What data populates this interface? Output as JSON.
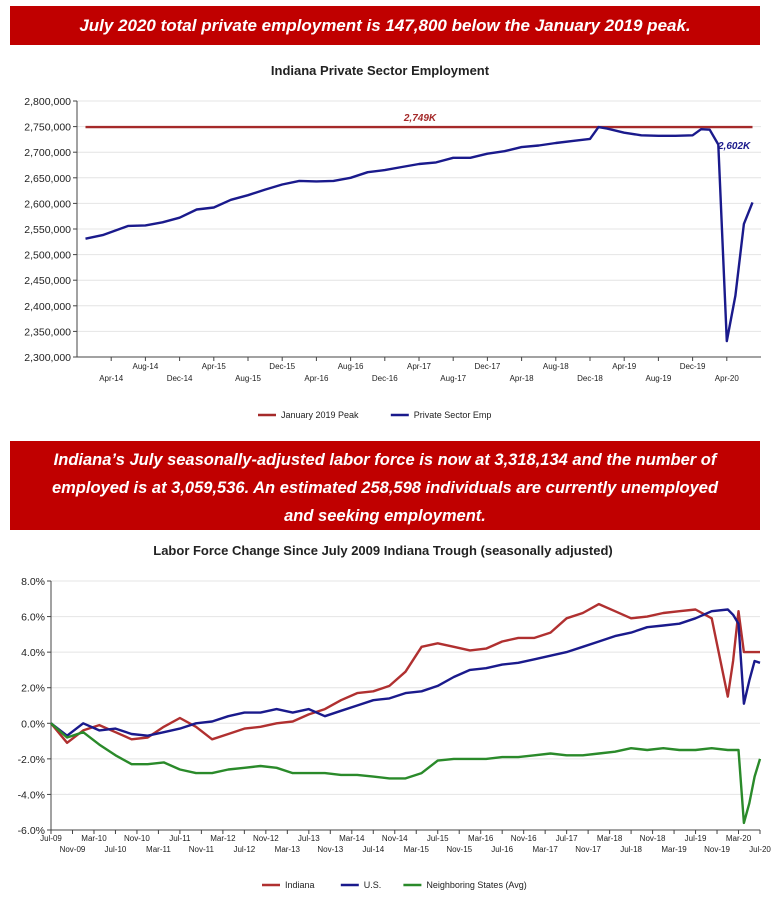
{
  "banner_top": "July 2020 total private employment is 147,800 below the January 2019 peak.",
  "banner_mid": [
    "Indiana’s July seasonally-adjusted labor force is now at 3,318,134 and the number of",
    "employed is at 3,059,536. An estimated 258,598 individuals are currently unemployed",
    "and seeking employment."
  ],
  "colors": {
    "banner": "#c00000",
    "peak": "#a52a2a",
    "private": "#1a1a8c",
    "indiana": "#b03030",
    "us": "#1a1a8c",
    "neighbors": "#2a8a2a"
  },
  "chart_data": [
    {
      "type": "line",
      "title": "Indiana Private Sector Employment",
      "y_ticks": [
        "2,800,000",
        "2,750,000",
        "2,700,000",
        "2,650,000",
        "2,600,000",
        "2,550,000",
        "2,500,000",
        "2,450,000",
        "2,400,000",
        "2,350,000",
        "2,300,000"
      ],
      "ylim": [
        2300000,
        2800000
      ],
      "x_ticks": [
        "Apr-14",
        "Aug-14",
        "Dec-14",
        "Apr-15",
        "Aug-15",
        "Dec-15",
        "Apr-16",
        "Aug-16",
        "Dec-16",
        "Apr-17",
        "Aug-17",
        "Dec-17",
        "Apr-18",
        "Aug-18",
        "Dec-18",
        "Apr-19",
        "Aug-19",
        "Dec-19",
        "Apr-20"
      ],
      "annotations": [
        "2,749K",
        "2,602K"
      ],
      "legend": [
        "January 2019 Peak",
        "Private Sector Emp"
      ],
      "legend_position": "bottom",
      "series": [
        {
          "name": "January 2019 Peak",
          "color": "#a52a2a",
          "x": [
            "2014-01",
            "2020-07"
          ],
          "values": [
            2749000,
            2749000
          ]
        },
        {
          "name": "Private Sector Emp",
          "color": "#1a1a8c",
          "x": [
            "2014-01",
            "2014-03",
            "2014-06",
            "2014-08",
            "2014-10",
            "2014-12",
            "2015-02",
            "2015-04",
            "2015-06",
            "2015-08",
            "2015-10",
            "2015-12",
            "2016-02",
            "2016-04",
            "2016-06",
            "2016-08",
            "2016-10",
            "2016-12",
            "2017-02",
            "2017-04",
            "2017-06",
            "2017-08",
            "2017-10",
            "2017-12",
            "2018-02",
            "2018-04",
            "2018-06",
            "2018-08",
            "2018-10",
            "2018-12",
            "2019-01",
            "2019-02",
            "2019-04",
            "2019-06",
            "2019-08",
            "2019-10",
            "2019-12",
            "2020-01",
            "2020-02",
            "2020-03",
            "2020-04",
            "2020-05",
            "2020-06",
            "2020-07"
          ],
          "values": [
            2531000,
            2538000,
            2556000,
            2557000,
            2563000,
            2572000,
            2588000,
            2592000,
            2607000,
            2616000,
            2627000,
            2637000,
            2644000,
            2643000,
            2644000,
            2650000,
            2661000,
            2665000,
            2671000,
            2677000,
            2680000,
            2689000,
            2689000,
            2697000,
            2702000,
            2710000,
            2713000,
            2718000,
            2722000,
            2726000,
            2749000,
            2746000,
            2738000,
            2733000,
            2732000,
            2732000,
            2733000,
            2745000,
            2744000,
            2715000,
            2331000,
            2420000,
            2560000,
            2602000
          ]
        }
      ]
    },
    {
      "type": "line",
      "title": "Labor Force Change Since July 2009 Indiana Trough (seasonally adjusted)",
      "y_ticks": [
        "8.0%",
        "6.0%",
        "4.0%",
        "2.0%",
        "0.0%",
        "-2.0%",
        "-4.0%",
        "-6.0%"
      ],
      "ylim": [
        -6,
        8
      ],
      "x_ticks": [
        "Jul-09",
        "Nov-09",
        "Mar-10",
        "Jul-10",
        "Nov-10",
        "Mar-11",
        "Jul-11",
        "Nov-11",
        "Mar-12",
        "Jul-12",
        "Nov-12",
        "Mar-13",
        "Jul-13",
        "Nov-13",
        "Mar-14",
        "Jul-14",
        "Nov-14",
        "Mar-15",
        "Jul-15",
        "Nov-15",
        "Mar-16",
        "Jul-16",
        "Nov-16",
        "Mar-17",
        "Jul-17",
        "Nov-17",
        "Mar-18",
        "Jul-18",
        "Nov-18",
        "Mar-19",
        "Jul-19",
        "Nov-19",
        "Mar-20",
        "Jul-20"
      ],
      "legend": [
        "Indiana",
        "U.S.",
        "Neighboring States (Avg)"
      ],
      "legend_position": "bottom",
      "series": [
        {
          "name": "Indiana",
          "color": "#b03030",
          "x": [
            "2009-07",
            "2009-10",
            "2010-01",
            "2010-04",
            "2010-07",
            "2010-10",
            "2011-01",
            "2011-04",
            "2011-07",
            "2011-10",
            "2012-01",
            "2012-04",
            "2012-07",
            "2012-10",
            "2013-01",
            "2013-04",
            "2013-07",
            "2013-10",
            "2014-01",
            "2014-04",
            "2014-07",
            "2014-10",
            "2015-01",
            "2015-04",
            "2015-07",
            "2015-10",
            "2016-01",
            "2016-04",
            "2016-07",
            "2016-10",
            "2017-01",
            "2017-04",
            "2017-07",
            "2017-10",
            "2018-01",
            "2018-04",
            "2018-07",
            "2018-10",
            "2019-01",
            "2019-04",
            "2019-07",
            "2019-10",
            "2020-01",
            "2020-02",
            "2020-03",
            "2020-04",
            "2020-05",
            "2020-06",
            "2020-07"
          ],
          "values": [
            0.0,
            -1.1,
            -0.4,
            -0.1,
            -0.5,
            -0.9,
            -0.8,
            -0.2,
            0.3,
            -0.2,
            -0.9,
            -0.6,
            -0.3,
            -0.2,
            0.0,
            0.1,
            0.5,
            0.8,
            1.3,
            1.7,
            1.8,
            2.1,
            2.9,
            4.3,
            4.5,
            4.3,
            4.1,
            4.2,
            4.6,
            4.8,
            4.8,
            5.1,
            5.9,
            6.2,
            6.7,
            6.3,
            5.9,
            6.0,
            6.2,
            6.3,
            6.4,
            5.9,
            1.5,
            3.5,
            6.3,
            4.0,
            4.0,
            4.0,
            4.0
          ]
        },
        {
          "name": "U.S.",
          "color": "#1a1a8c",
          "x": [
            "2009-07",
            "2009-10",
            "2010-01",
            "2010-04",
            "2010-07",
            "2010-10",
            "2011-01",
            "2011-04",
            "2011-07",
            "2011-10",
            "2012-01",
            "2012-04",
            "2012-07",
            "2012-10",
            "2013-01",
            "2013-04",
            "2013-07",
            "2013-10",
            "2014-01",
            "2014-04",
            "2014-07",
            "2014-10",
            "2015-01",
            "2015-04",
            "2015-07",
            "2015-10",
            "2016-01",
            "2016-04",
            "2016-07",
            "2016-10",
            "2017-01",
            "2017-04",
            "2017-07",
            "2017-10",
            "2018-01",
            "2018-04",
            "2018-07",
            "2018-10",
            "2019-01",
            "2019-04",
            "2019-07",
            "2019-10",
            "2020-01",
            "2020-02",
            "2020-03",
            "2020-04",
            "2020-05",
            "2020-06",
            "2020-07"
          ],
          "values": [
            0.0,
            -0.7,
            0.0,
            -0.4,
            -0.3,
            -0.6,
            -0.7,
            -0.5,
            -0.3,
            0.0,
            0.1,
            0.4,
            0.6,
            0.6,
            0.8,
            0.6,
            0.8,
            0.4,
            0.7,
            1.0,
            1.3,
            1.4,
            1.7,
            1.8,
            2.1,
            2.6,
            3.0,
            3.1,
            3.3,
            3.4,
            3.6,
            3.8,
            4.0,
            4.3,
            4.6,
            4.9,
            5.1,
            5.4,
            5.5,
            5.6,
            5.9,
            6.3,
            6.4,
            6.1,
            5.6,
            1.1,
            2.4,
            3.5,
            3.4
          ]
        },
        {
          "name": "Neighboring States (Avg)",
          "color": "#2a8a2a",
          "x": [
            "2009-07",
            "2009-10",
            "2010-01",
            "2010-04",
            "2010-07",
            "2010-10",
            "2011-01",
            "2011-04",
            "2011-07",
            "2011-10",
            "2012-01",
            "2012-04",
            "2012-07",
            "2012-10",
            "2013-01",
            "2013-04",
            "2013-07",
            "2013-10",
            "2014-01",
            "2014-04",
            "2014-07",
            "2014-10",
            "2015-01",
            "2015-04",
            "2015-07",
            "2015-10",
            "2016-01",
            "2016-04",
            "2016-07",
            "2016-10",
            "2017-01",
            "2017-04",
            "2017-07",
            "2017-10",
            "2018-01",
            "2018-04",
            "2018-07",
            "2018-10",
            "2019-01",
            "2019-04",
            "2019-07",
            "2019-10",
            "2020-01",
            "2020-02",
            "2020-03",
            "2020-04",
            "2020-05",
            "2020-06",
            "2020-07"
          ],
          "values": [
            0.0,
            -0.8,
            -0.5,
            -1.2,
            -1.8,
            -2.3,
            -2.3,
            -2.2,
            -2.6,
            -2.8,
            -2.8,
            -2.6,
            -2.5,
            -2.4,
            -2.5,
            -2.8,
            -2.8,
            -2.8,
            -2.9,
            -2.9,
            -3.0,
            -3.1,
            -3.1,
            -2.8,
            -2.1,
            -2.0,
            -2.0,
            -2.0,
            -1.9,
            -1.9,
            -1.8,
            -1.7,
            -1.8,
            -1.8,
            -1.7,
            -1.6,
            -1.4,
            -1.5,
            -1.4,
            -1.5,
            -1.5,
            -1.4,
            -1.5,
            -1.5,
            -1.5,
            -5.6,
            -4.5,
            -3.0,
            -2.0
          ]
        }
      ]
    }
  ]
}
